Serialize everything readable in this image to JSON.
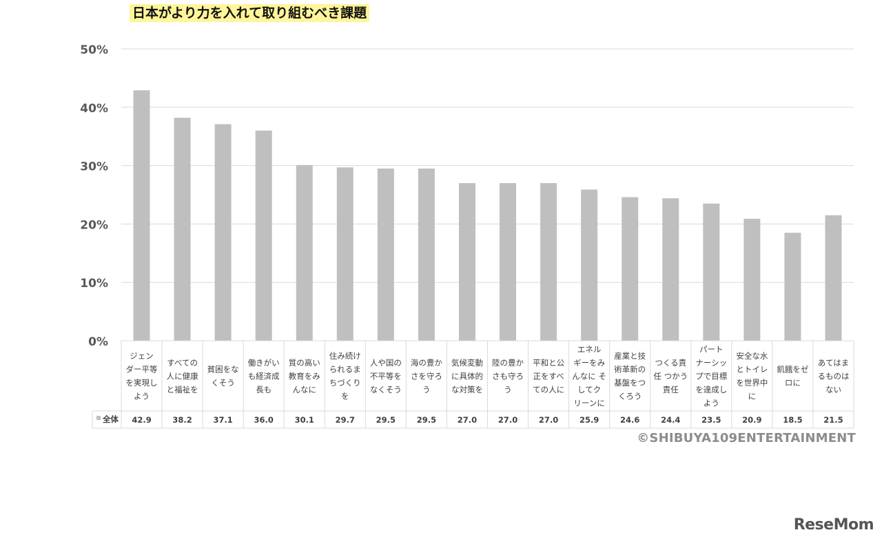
{
  "chart_data": {
    "type": "bar",
    "title": "日本がより力を入れて取り組むべき課題",
    "ylim": [
      0,
      50
    ],
    "yticks": [
      "0%",
      "10%",
      "20%",
      "30%",
      "40%",
      "50%"
    ],
    "grid": true,
    "legend_position": "table-left",
    "categories": [
      [
        "ジェン",
        "ダー平等",
        "を実現し",
        "よう"
      ],
      [
        "すべての",
        "人に健康",
        "と福祉を"
      ],
      [
        "貧困をな",
        "くそう"
      ],
      [
        "働きがい",
        "も経済成",
        "長も"
      ],
      [
        "質の高い",
        "教育をみ",
        "んなに"
      ],
      [
        "住み続け",
        "られるま",
        "ちづくり",
        "を"
      ],
      [
        "人や国の",
        "不平等を",
        "なくそう"
      ],
      [
        "海の豊か",
        "さを守ろ",
        "う"
      ],
      [
        "気候変動",
        "に具体的",
        "な対策を"
      ],
      [
        "陸の豊か",
        "さも守ろ",
        "う"
      ],
      [
        "平和と公",
        "正をすべ",
        "ての人に"
      ],
      [
        "エネル",
        "ギーをみ",
        "んなに そ",
        "してク",
        "リーンに"
      ],
      [
        "産業と技",
        "術革新の",
        "基盤をつ",
        "くろう"
      ],
      [
        "つくる責",
        "任 つかう",
        "責任"
      ],
      [
        "パート",
        "ナーシッ",
        "プで目標",
        "を達成し",
        "よう"
      ],
      [
        "安全な水",
        "とトイレ",
        "を世界中",
        "に"
      ],
      [
        "飢餓をゼ",
        "ロに"
      ],
      [
        "あてはま",
        "るものは",
        "ない"
      ]
    ],
    "series": [
      {
        "name": "全体",
        "values": [
          42.9,
          38.2,
          37.1,
          36.0,
          30.1,
          29.7,
          29.5,
          29.5,
          27.0,
          27.0,
          27.0,
          25.9,
          24.6,
          24.4,
          23.5,
          20.9,
          18.5,
          21.5
        ],
        "labels": [
          "42.9",
          "38.2",
          "37.1",
          "36.0",
          "30.1",
          "29.7",
          "29.5",
          "29.5",
          "27.0",
          "27.0",
          "27.0",
          "25.9",
          "24.6",
          "24.4",
          "23.5",
          "20.9",
          "18.5",
          "21.5"
        ],
        "color": "#bfbfbf"
      }
    ]
  },
  "colors": {
    "grid": "#d9d9d9",
    "title_highlight": "#fff59a",
    "axis_text": "#595959"
  },
  "copyright": "©SHIBUYA109ENTERTAINMENT",
  "brand": "ReseMom"
}
